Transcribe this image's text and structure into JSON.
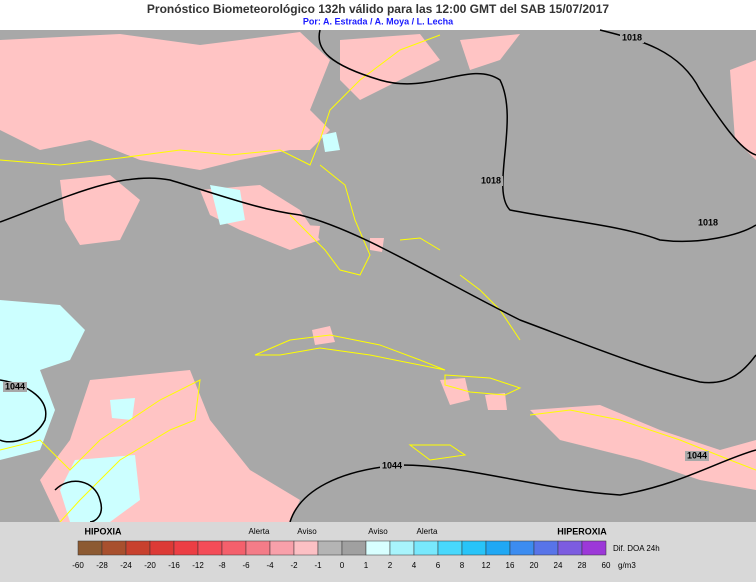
{
  "title": "Pronóstico Biometeorológico 132h  válido para las 12:00 GMT del  SAB 15/07/2017",
  "subtitle": "Por: A. Estrada / A. Moya / L. Lecha",
  "contour_labels": [
    1018,
    1018,
    1018,
    1044,
    1044,
    1044
  ],
  "legend": {
    "left_label": "HIPOXIA",
    "right_label": "HIPEROXIA",
    "level_labels": [
      "Alerta",
      "Aviso",
      "Aviso",
      "Alerta"
    ],
    "ticks": [
      -60,
      -28,
      -24,
      -20,
      -16,
      -12,
      -8,
      -6,
      -4,
      -2,
      -1,
      0,
      1,
      2,
      4,
      6,
      8,
      12,
      16,
      20,
      24,
      28,
      60
    ],
    "colors": [
      "#8c5a32",
      "#a8502e",
      "#c8412e",
      "#dc3a36",
      "#ec3e44",
      "#f44c58",
      "#f4606c",
      "#f47c88",
      "#f8a0aa",
      "#fcc0c4",
      "#b4b4b4",
      "#a0a0a0",
      "#d8ffff",
      "#a8f4fc",
      "#78e8fc",
      "#48d8fc",
      "#28c4f8",
      "#20a8f4",
      "#3c8cf0",
      "#5874e8",
      "#7c5ce0",
      "#9c38d8"
    ],
    "caption": "Dif. DOA 24h",
    "unit": "g/m3"
  }
}
